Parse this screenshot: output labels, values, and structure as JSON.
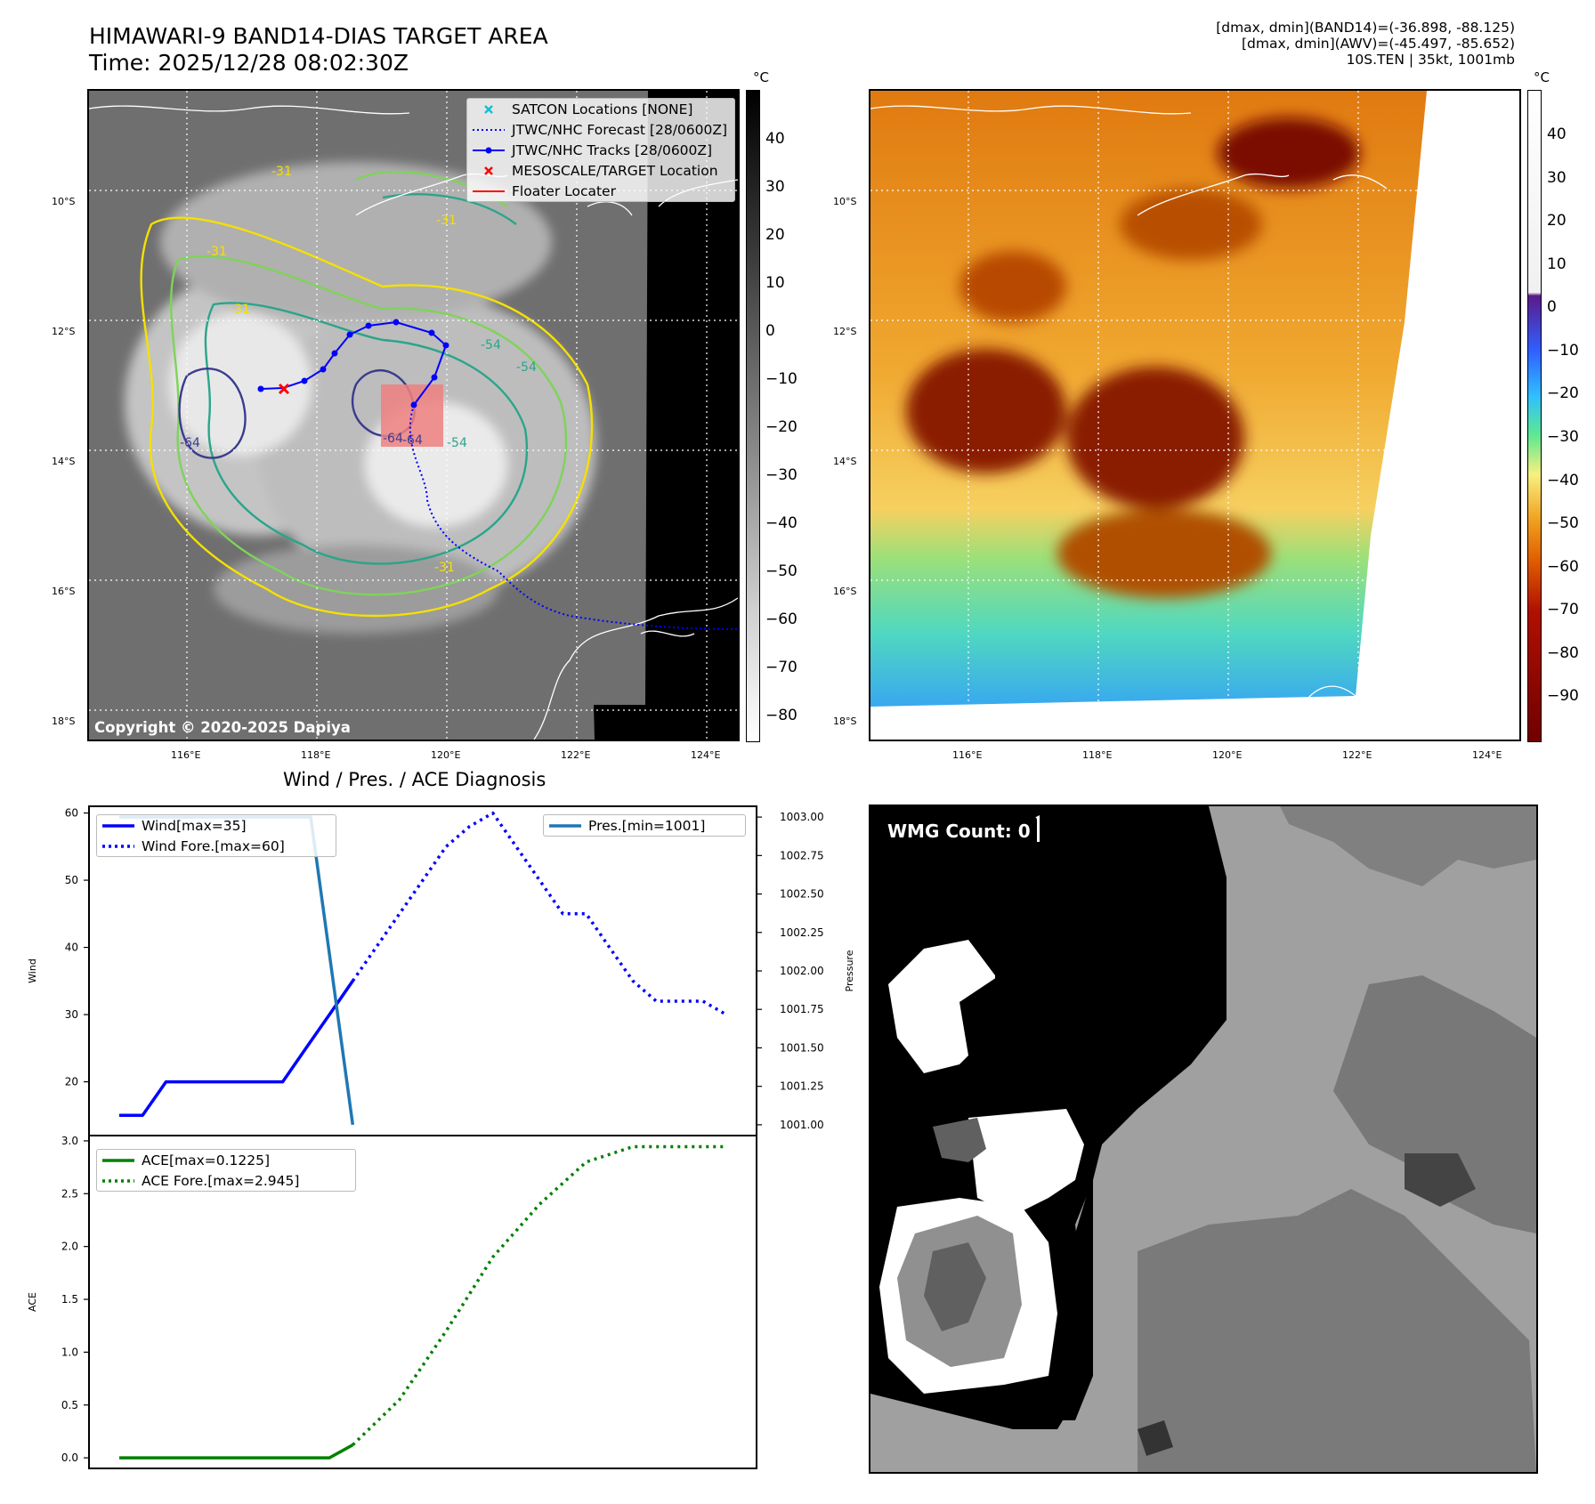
{
  "header": {
    "title_line1": "HIMAWARI-9 BAND14-DIAS TARGET AREA",
    "title_line2": "Time: 2025/12/28 08:02:30Z",
    "info_line1": "[dmax, dmin](BAND14)=(-36.898, -88.125)",
    "info_line2": "[dmax, dmin](AWV)=(-45.497, -85.652)",
    "info_line3": "10S.TEN | 35kt, 1001mb"
  },
  "colors": {
    "track": "#0000ff",
    "ace": "#008000",
    "pressure": "#1f77b4",
    "target_box": "#f08080",
    "contour_yellow": "#f5e000",
    "contour_lightgreen": "#7fd35a",
    "contour_teal": "#2aa58a",
    "contour_navy": "#3b3b8f"
  },
  "map_panels": {
    "lon_ticks": [
      "116°E",
      "118°E",
      "120°E",
      "122°E",
      "124°E"
    ],
    "lat_ticks": [
      "10°S",
      "12°S",
      "14°S",
      "16°S",
      "18°S"
    ],
    "copyright": "Copyright © 2020-2025 Dapiya",
    "unit": "°C",
    "gray_cbar_ticks": [
      "40",
      "30",
      "20",
      "10",
      "0",
      "−10",
      "−20",
      "−30",
      "−40",
      "−50",
      "−60",
      "−70",
      "−80"
    ],
    "color_cbar_ticks": [
      "40",
      "30",
      "20",
      "10",
      "0",
      "−10",
      "−20",
      "−30",
      "−40",
      "−50",
      "−60",
      "−70",
      "−80",
      "−90"
    ],
    "contour_labels": [
      "-31",
      "-31",
      "-31",
      "-54",
      "-64",
      "-64",
      "-54",
      "-31",
      "-54",
      "-31",
      "-64"
    ]
  },
  "legend": [
    {
      "label": "SATCON Locations [NONE]",
      "icon": "cyan-x-marker"
    },
    {
      "label": "JTWC/NHC Forecast [28/0600Z]",
      "icon": "blue-dotted-line"
    },
    {
      "label": "JTWC/NHC Tracks [28/0600Z]",
      "icon": "blue-line-dot"
    },
    {
      "label": "MESOSCALE/TARGET Location",
      "icon": "red-x-marker"
    },
    {
      "label": "Floater Locater",
      "icon": "red-line"
    }
  ],
  "wmg": {
    "label": "WMG Count: 0"
  },
  "chart_data": [
    {
      "type": "line",
      "title": "Wind / Pres. / ACE Diagnosis",
      "ylabel": "Wind",
      "y2label": "Pressure",
      "ylim": [
        12,
        61
      ],
      "y2lim": [
        1000.93,
        1003.07
      ],
      "y_ticks": [
        "60",
        "50",
        "40",
        "30",
        "20"
      ],
      "y2_ticks": [
        "1003.00",
        "1002.75",
        "1002.50",
        "1002.25",
        "1002.00",
        "1001.75",
        "1001.50",
        "1001.25",
        "1001.00"
      ],
      "xlim": [
        0,
        26
      ],
      "series": [
        {
          "name": "Wind[max=35]",
          "style": "solid",
          "x": [
            0,
            1,
            2,
            3,
            4,
            5,
            6,
            7,
            8,
            9,
            10
          ],
          "y": [
            15,
            15,
            20,
            20,
            20,
            20,
            20,
            20,
            25,
            30,
            35
          ]
        },
        {
          "name": "Wind Fore.[max=60]",
          "style": "dotted",
          "x": [
            10,
            11,
            12,
            13,
            14,
            15,
            16,
            17,
            18,
            19,
            20,
            21,
            22,
            23,
            24,
            25,
            26
          ],
          "y": [
            35,
            40,
            45,
            50,
            55,
            58,
            60,
            55,
            50,
            45,
            45,
            40,
            35,
            32,
            32,
            32,
            30
          ]
        },
        {
          "name": "Pres.[min=1001]",
          "style": "solid",
          "axis": "right",
          "x": [
            0,
            8.2,
            10
          ],
          "y": [
            1003,
            1003,
            1001
          ]
        }
      ]
    },
    {
      "type": "line",
      "ylabel": "ACE",
      "ylim": [
        -0.1,
        3.05
      ],
      "y_ticks": [
        "3.0",
        "2.5",
        "2.0",
        "1.5",
        "1.0",
        "0.5",
        "0.0"
      ],
      "xlim": [
        0,
        26
      ],
      "series": [
        {
          "name": "ACE[max=0.1225]",
          "style": "solid",
          "x": [
            0,
            9,
            10
          ],
          "y": [
            0,
            0,
            0.1225
          ]
        },
        {
          "name": "ACE Fore.[max=2.945]",
          "style": "dotted",
          "x": [
            10,
            12,
            14,
            16,
            18,
            20,
            22,
            24,
            26
          ],
          "y": [
            0.1225,
            0.55,
            1.2,
            1.9,
            2.4,
            2.8,
            2.945,
            2.945,
            2.945
          ]
        }
      ]
    }
  ]
}
